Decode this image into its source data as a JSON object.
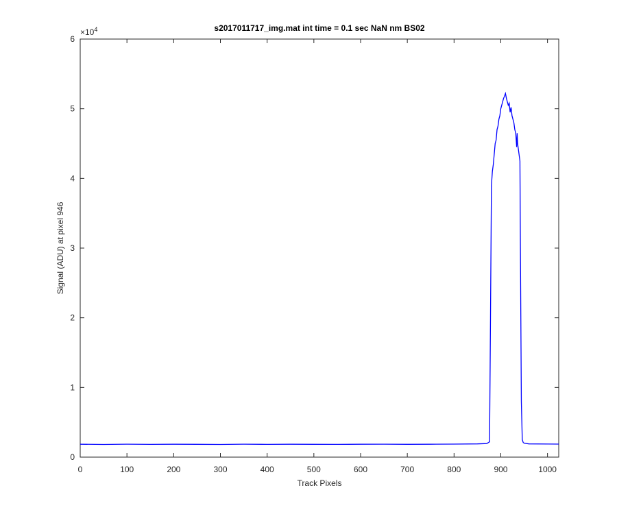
{
  "chart_data": {
    "type": "line",
    "title": "s2017011717_img.mat int time = 0.1 sec  NaN nm BS02",
    "x_label": "Track Pixels",
    "y_label": "Signal (ADU) at pixel 946",
    "y_multiplier": {
      "base": "×10",
      "exponent": "4"
    },
    "xlim": [
      0,
      1024
    ],
    "ylim": [
      0,
      60000
    ],
    "xticks": [
      0,
      100,
      200,
      300,
      400,
      500,
      600,
      700,
      800,
      900,
      1000
    ],
    "yticks": [
      0,
      {
        "value": 10000,
        "label": "1"
      },
      {
        "value": 20000,
        "label": "2"
      },
      {
        "value": 30000,
        "label": "3"
      },
      {
        "value": 40000,
        "label": "4"
      },
      {
        "value": 50000,
        "label": "5"
      },
      {
        "value": 60000,
        "label": "6"
      }
    ],
    "box": true,
    "series": [
      {
        "color": "#0000ff",
        "x": [
          0,
          50,
          100,
          150,
          200,
          250,
          300,
          350,
          400,
          450,
          500,
          550,
          600,
          650,
          700,
          750,
          800,
          850,
          870,
          876,
          878,
          880,
          882,
          884,
          886,
          888,
          890,
          892,
          894,
          896,
          898,
          900,
          902,
          904,
          906,
          908,
          910,
          912,
          914,
          916,
          918,
          920,
          922,
          924,
          926,
          928,
          930,
          932,
          934,
          935,
          936,
          938,
          940,
          941,
          942,
          944,
          946,
          948,
          950,
          960,
          1000,
          1024
        ],
        "values": [
          1850,
          1820,
          1860,
          1830,
          1850,
          1840,
          1820,
          1860,
          1830,
          1850,
          1840,
          1830,
          1850,
          1860,
          1840,
          1850,
          1870,
          1900,
          1950,
          2200,
          20000,
          39000,
          41000,
          42000,
          43500,
          45000,
          45500,
          47000,
          47500,
          48500,
          49000,
          50000,
          50500,
          51000,
          51500,
          51800,
          52200,
          51500,
          51000,
          50500,
          50800,
          49500,
          50200,
          49000,
          48500,
          48000,
          47000,
          46500,
          44500,
          46500,
          45000,
          44000,
          43000,
          42500,
          30000,
          8000,
          2500,
          2100,
          2000,
          1900,
          1880,
          1870
        ]
      }
    ]
  }
}
